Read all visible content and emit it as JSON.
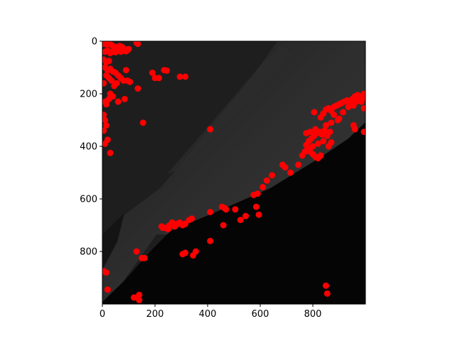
{
  "chart_data": {
    "type": "scatter",
    "title": "",
    "xlabel": "",
    "ylabel": "",
    "xlim": [
      0,
      1000
    ],
    "ylim": [
      1000,
      0
    ],
    "y_inverted": true,
    "grid": false,
    "legend": "none",
    "background": "grayscale microscopy image (dark tissue band running diagonally)",
    "x_ticks": [
      0,
      200,
      400,
      600,
      800
    ],
    "y_ticks": [
      0,
      200,
      400,
      600,
      800
    ],
    "marker_color": "#ff0000",
    "series": [
      {
        "points": [
          [
            5,
            10
          ],
          [
            15,
            12
          ],
          [
            25,
            8
          ],
          [
            35,
            15
          ],
          [
            45,
            20
          ],
          [
            55,
            25
          ],
          [
            65,
            18
          ],
          [
            75,
            22
          ],
          [
            85,
            30
          ],
          [
            95,
            35
          ],
          [
            130,
            5
          ],
          [
            135,
            10
          ],
          [
            10,
            40
          ],
          [
            20,
            35
          ],
          [
            30,
            45
          ],
          [
            40,
            38
          ],
          [
            50,
            42
          ],
          [
            60,
            33
          ],
          [
            70,
            40
          ],
          [
            80,
            36
          ],
          [
            90,
            38
          ],
          [
            100,
            30
          ],
          [
            5,
            70
          ],
          [
            15,
            80
          ],
          [
            25,
            75
          ],
          [
            10,
            100
          ],
          [
            20,
            110
          ],
          [
            30,
            105
          ],
          [
            40,
            115
          ],
          [
            50,
            120
          ],
          [
            15,
            130
          ],
          [
            25,
            140
          ],
          [
            35,
            150
          ],
          [
            5,
            160
          ],
          [
            45,
            170
          ],
          [
            55,
            160
          ],
          [
            90,
            110
          ],
          [
            95,
            150
          ],
          [
            105,
            155
          ],
          [
            60,
            130
          ],
          [
            70,
            140
          ],
          [
            80,
            150
          ],
          [
            190,
            120
          ],
          [
            200,
            140
          ],
          [
            215,
            140
          ],
          [
            235,
            110
          ],
          [
            245,
            112
          ],
          [
            295,
            135
          ],
          [
            315,
            135
          ],
          [
            30,
            200
          ],
          [
            40,
            210
          ],
          [
            25,
            220
          ],
          [
            15,
            240
          ],
          [
            10,
            230
          ],
          [
            60,
            230
          ],
          [
            85,
            220
          ],
          [
            135,
            180
          ],
          [
            5,
            280
          ],
          [
            10,
            300
          ],
          [
            15,
            320
          ],
          [
            5,
            340
          ],
          [
            20,
            375
          ],
          [
            10,
            390
          ],
          [
            30,
            425
          ],
          [
            155,
            310
          ],
          [
            410,
            335
          ],
          [
            5,
            875
          ],
          [
            15,
            880
          ],
          [
            20,
            945
          ],
          [
            130,
            800
          ],
          [
            150,
            825
          ],
          [
            160,
            825
          ],
          [
            120,
            975
          ],
          [
            140,
            965
          ],
          [
            140,
            985
          ],
          [
            305,
            810
          ],
          [
            315,
            805
          ],
          [
            345,
            815
          ],
          [
            355,
            800
          ],
          [
            410,
            760
          ],
          [
            240,
            710
          ],
          [
            255,
            700
          ],
          [
            265,
            690
          ],
          [
            275,
            705
          ],
          [
            285,
            695
          ],
          [
            295,
            690
          ],
          [
            305,
            700
          ],
          [
            315,
            695
          ],
          [
            330,
            680
          ],
          [
            340,
            675
          ],
          [
            250,
            715
          ],
          [
            225,
            705
          ],
          [
            230,
            710
          ],
          [
            410,
            650
          ],
          [
            455,
            630
          ],
          [
            465,
            635
          ],
          [
            470,
            640
          ],
          [
            460,
            700
          ],
          [
            505,
            640
          ],
          [
            525,
            680
          ],
          [
            545,
            665
          ],
          [
            595,
            660
          ],
          [
            585,
            630
          ],
          [
            575,
            585
          ],
          [
            590,
            580
          ],
          [
            610,
            555
          ],
          [
            625,
            530
          ],
          [
            645,
            510
          ],
          [
            685,
            470
          ],
          [
            695,
            480
          ],
          [
            715,
            500
          ],
          [
            745,
            470
          ],
          [
            760,
            435
          ],
          [
            770,
            420
          ],
          [
            780,
            410
          ],
          [
            790,
            420
          ],
          [
            800,
            430
          ],
          [
            810,
            440
          ],
          [
            820,
            445
          ],
          [
            830,
            435
          ],
          [
            775,
            395
          ],
          [
            785,
            380
          ],
          [
            795,
            370
          ],
          [
            805,
            360
          ],
          [
            815,
            350
          ],
          [
            825,
            345
          ],
          [
            835,
            355
          ],
          [
            845,
            340
          ],
          [
            855,
            360
          ],
          [
            865,
            345
          ],
          [
            775,
            350
          ],
          [
            790,
            345
          ],
          [
            810,
            335
          ],
          [
            830,
            350
          ],
          [
            800,
            400
          ],
          [
            820,
            390
          ],
          [
            840,
            380
          ],
          [
            860,
            400
          ],
          [
            870,
            385
          ],
          [
            805,
            270
          ],
          [
            830,
            290
          ],
          [
            840,
            275
          ],
          [
            850,
            260
          ],
          [
            860,
            255
          ],
          [
            870,
            265
          ],
          [
            880,
            250
          ],
          [
            890,
            245
          ],
          [
            900,
            240
          ],
          [
            910,
            235
          ],
          [
            920,
            230
          ],
          [
            930,
            225
          ],
          [
            940,
            230
          ],
          [
            950,
            220
          ],
          [
            960,
            210
          ],
          [
            970,
            205
          ],
          [
            980,
            210
          ],
          [
            990,
            215
          ],
          [
            995,
            200
          ],
          [
            985,
            230
          ],
          [
            975,
            225
          ],
          [
            880,
            280
          ],
          [
            900,
            295
          ],
          [
            915,
            270
          ],
          [
            935,
            250
          ],
          [
            955,
            245
          ],
          [
            965,
            230
          ],
          [
            850,
            320
          ],
          [
            870,
            310
          ],
          [
            895,
            300
          ],
          [
            955,
            320
          ],
          [
            960,
            335
          ],
          [
            995,
            255
          ],
          [
            995,
            345
          ],
          [
            850,
            930
          ],
          [
            855,
            960
          ]
        ]
      }
    ]
  }
}
